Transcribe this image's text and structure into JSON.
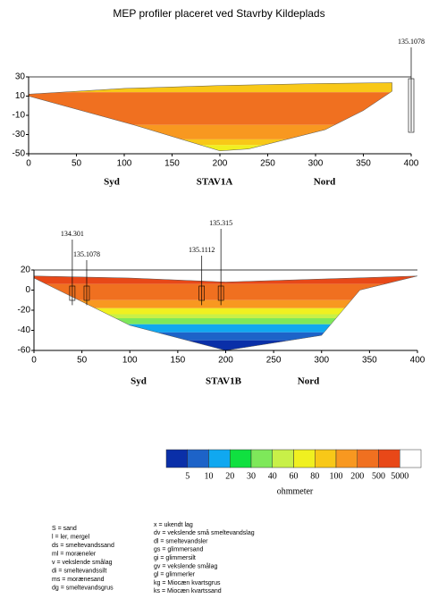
{
  "title": "MEP profiler placeret ved Stavrby Kildeplads",
  "chart_data": [
    {
      "type": "section",
      "xlim": [
        0,
        400
      ],
      "ylim": [
        -50,
        30
      ],
      "xticks": [
        0,
        50,
        100,
        150,
        200,
        250,
        300,
        350,
        400
      ],
      "yticks": [
        -50,
        -30,
        -10,
        10,
        30
      ],
      "labels": [
        "Syd",
        "STAV1A",
        "Nord"
      ],
      "boreholes": [
        {
          "name": "135.1078",
          "x": 400
        }
      ]
    },
    {
      "type": "section",
      "xlim": [
        0,
        400
      ],
      "ylim": [
        -60,
        20
      ],
      "xticks": [
        0,
        50,
        100,
        150,
        200,
        250,
        300,
        350,
        400
      ],
      "yticks": [
        -60,
        -40,
        -20,
        0,
        20
      ],
      "labels": [
        "Syd",
        "STAV1B",
        "Nord"
      ],
      "boreholes": [
        {
          "name": "134.301",
          "x": 40
        },
        {
          "name": "135.1078",
          "x": 55
        },
        {
          "name": "135.1112",
          "x": 175
        },
        {
          "name": "135.315",
          "x": 195
        }
      ]
    },
    {
      "type": "colorbar",
      "colors": [
        "#0a2fa8",
        "#1d63c8",
        "#10a8f0",
        "#10e040",
        "#7ee85a",
        "#c8f048",
        "#f0f020",
        "#f8c818",
        "#f89820",
        "#f07020",
        "#e84818",
        "#ffffff"
      ],
      "ticks": [
        5,
        10,
        20,
        30,
        40,
        60,
        80,
        100,
        200,
        500,
        5000
      ],
      "label": "ohmmeter"
    }
  ],
  "legend_left": [
    "S = sand",
    "l = ler, mergel",
    "ds = smeltevandssand",
    "ml = moræneler",
    "v = vekslende smålag",
    "di = smeltevandssilt",
    "ms = morænesand",
    "dg = smeltevandsgrus"
  ],
  "legend_right": [
    "x = ukendt lag",
    "dv = vekslende små smeltevandslag",
    "dl = smeltevandsler",
    "gs = glimmersand",
    "gi = glimmersilt",
    "gv = vekslende smålag",
    "gl = glimmerler",
    "kg = Miocæn kvartsgrus",
    "ks = Miocæn kvartssand"
  ]
}
